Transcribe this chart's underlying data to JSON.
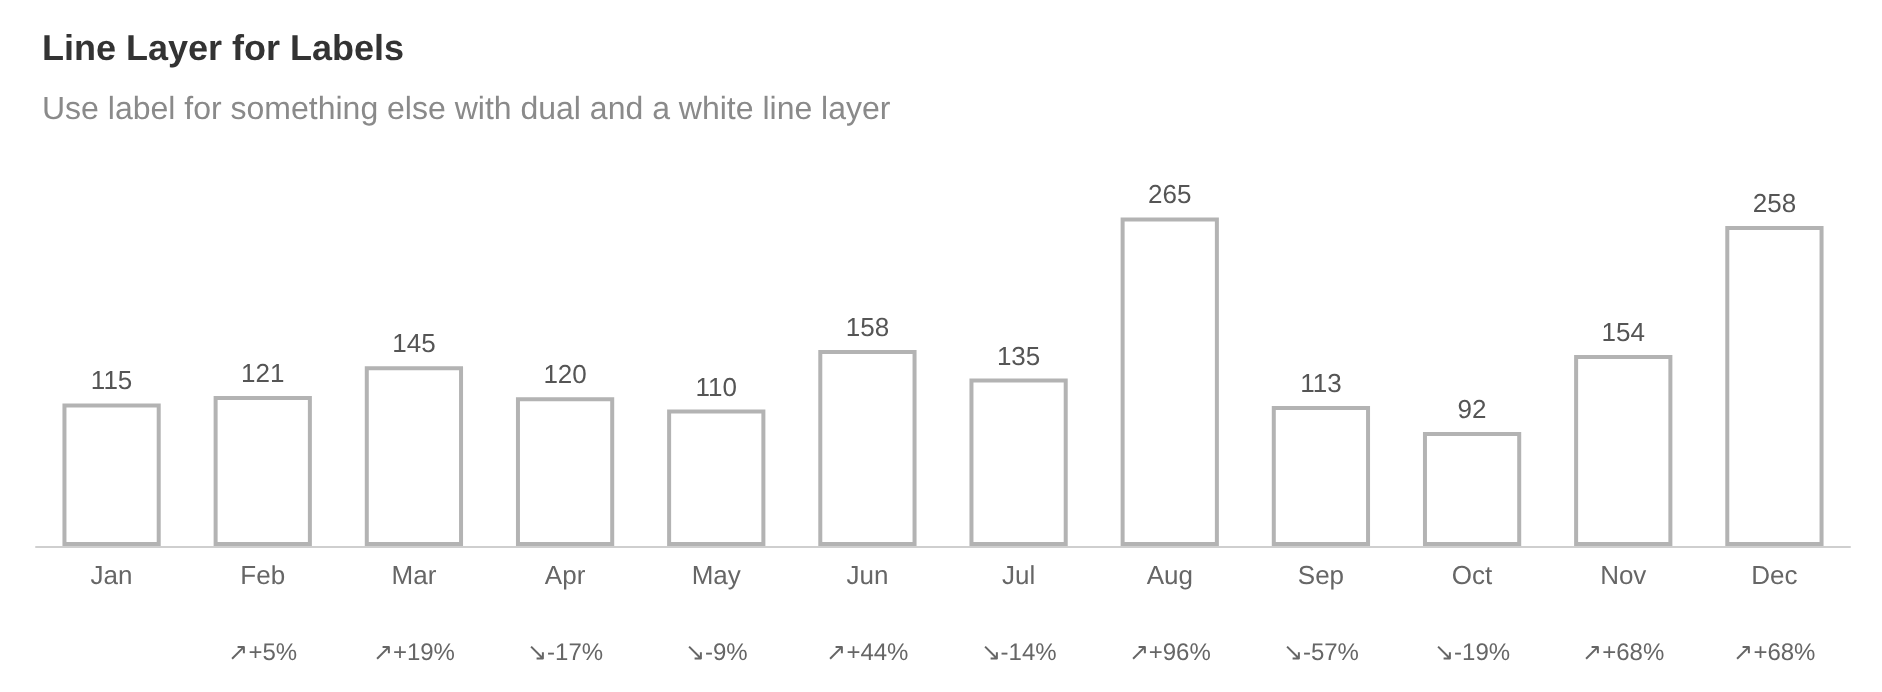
{
  "chart_data": {
    "type": "bar",
    "title": "Line Layer for Labels",
    "subtitle": "Use label for something else with dual and a white line layer",
    "categories": [
      "Jan",
      "Feb",
      "Mar",
      "Apr",
      "May",
      "Jun",
      "Jul",
      "Aug",
      "Sep",
      "Oct",
      "Nov",
      "Dec"
    ],
    "values": [
      115,
      121,
      145,
      120,
      110,
      158,
      135,
      265,
      113,
      92,
      154,
      258
    ],
    "color": "#b3b3b3",
    "tick_labels": "x",
    "data_labels": true,
    "annotations": [
      "↗+5%",
      "↗+19%",
      "↘-17%",
      "↘-9%",
      "↗+44%",
      "↘-14%",
      "↗+96%",
      "↘-57%",
      "↘-19%",
      "↗+68%",
      "↗+68%"
    ]
  }
}
